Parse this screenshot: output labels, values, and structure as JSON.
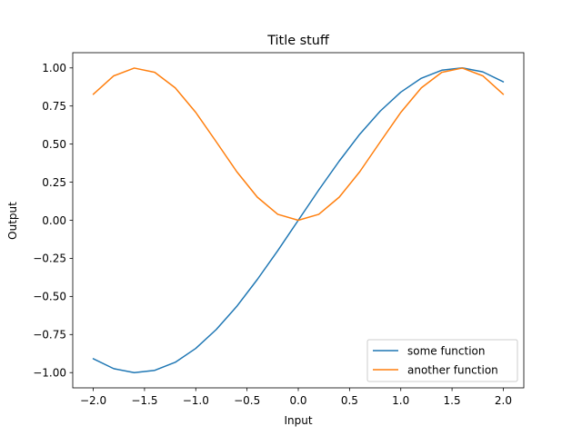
{
  "chart_data": {
    "type": "line",
    "title": "Title stuff",
    "xlabel": "Input",
    "ylabel": "Output",
    "xlim": [
      -2.2,
      2.2
    ],
    "ylim": [
      -1.1,
      1.1
    ],
    "xticks": [
      -2.0,
      -1.5,
      -1.0,
      -0.5,
      0.0,
      0.5,
      1.0,
      1.5,
      2.0
    ],
    "xtick_labels": [
      "−2.0",
      "−1.5",
      "−1.0",
      "−0.5",
      "0.0",
      "0.5",
      "1.0",
      "1.5",
      "2.0"
    ],
    "yticks": [
      -1.0,
      -0.75,
      -0.5,
      -0.25,
      0.0,
      0.25,
      0.5,
      0.75,
      1.0
    ],
    "ytick_labels": [
      "−1.00",
      "−0.75",
      "−0.50",
      "−0.25",
      "0.00",
      "0.25",
      "0.50",
      "0.75",
      "1.00"
    ],
    "grid": false,
    "legend_position": "lower right",
    "x": [
      -2.0,
      -1.8,
      -1.6,
      -1.4,
      -1.2,
      -1.0,
      -0.8,
      -0.6,
      -0.4,
      -0.2,
      0.0,
      0.2,
      0.4,
      0.6,
      0.8,
      1.0,
      1.2,
      1.4,
      1.6,
      1.8,
      2.0
    ],
    "series": [
      {
        "name": "some function",
        "color": "#1f77b4",
        "values": [
          -0.909,
          -0.974,
          -1.0,
          -0.985,
          -0.932,
          -0.841,
          -0.717,
          -0.565,
          -0.389,
          -0.199,
          0.0,
          0.199,
          0.389,
          0.565,
          0.717,
          0.841,
          0.932,
          0.985,
          1.0,
          0.974,
          0.909
        ]
      },
      {
        "name": "another function",
        "color": "#ff7f0e",
        "values": [
          0.827,
          0.948,
          0.999,
          0.971,
          0.869,
          0.708,
          0.515,
          0.319,
          0.152,
          0.039,
          0.0,
          0.039,
          0.152,
          0.319,
          0.515,
          0.708,
          0.869,
          0.971,
          0.999,
          0.948,
          0.827
        ]
      }
    ]
  }
}
